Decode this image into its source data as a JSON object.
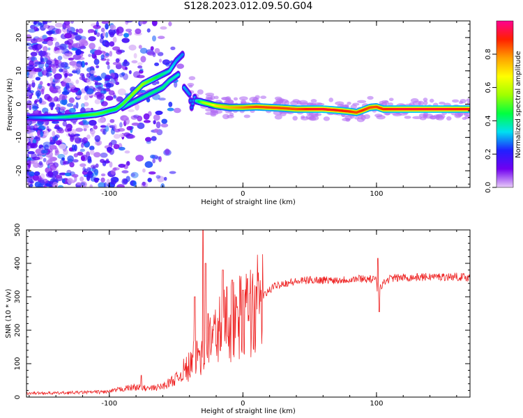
{
  "title": "S128.2023.012.09.50.G04",
  "chart_data": [
    {
      "type": "heatmap",
      "title": "",
      "xlabel": "Height of straight line (km)",
      "ylabel": "Frequency (Hz)",
      "xlim": [
        -162,
        170
      ],
      "ylim": [
        -25,
        25
      ],
      "x_ticks": [
        "-100",
        "0",
        "100"
      ],
      "y_ticks": [
        "20",
        "10",
        "0",
        "-10",
        "-20"
      ],
      "colorbar": {
        "label": "Normalized spectral amplitude",
        "range": [
          0,
          1
        ],
        "ticks": [
          "0.0",
          "0.2",
          "0.4",
          "0.6",
          "0.8"
        ],
        "colors": [
          "#e8ccf8",
          "#7000f0",
          "#2020ff",
          "#00e0f0",
          "#00ff40",
          "#a0ff00",
          "#ffff00",
          "#ffa000",
          "#ff2000",
          "#ff0090"
        ]
      },
      "ridge": [
        {
          "x": -162,
          "y": -4,
          "a": 0.25
        },
        {
          "x": -150,
          "y": -4,
          "a": 0.3
        },
        {
          "x": -140,
          "y": -4,
          "a": 0.35
        },
        {
          "x": -130,
          "y": -3.8,
          "a": 0.4
        },
        {
          "x": -125,
          "y": -3.6,
          "a": 0.42
        },
        {
          "x": -120,
          "y": -3.4,
          "a": 0.45
        },
        {
          "x": -115,
          "y": -3.2,
          "a": 0.47
        },
        {
          "x": -110,
          "y": -3,
          "a": 0.5
        },
        {
          "x": -105,
          "y": -2.6,
          "a": 0.48
        },
        {
          "x": -100,
          "y": -2,
          "a": 0.45
        },
        {
          "x": -95,
          "y": -1.5,
          "a": 0.45
        },
        {
          "x": -90,
          "y": 0,
          "a": 0.48
        },
        {
          "x": -85,
          "y": 2,
          "a": 0.52
        },
        {
          "x": -80,
          "y": 4,
          "a": 0.55
        },
        {
          "x": -75,
          "y": 6,
          "a": 0.55
        },
        {
          "x": -70,
          "y": 7,
          "a": 0.5
        },
        {
          "x": -65,
          "y": 8,
          "a": 0.45
        },
        {
          "x": -60,
          "y": 9,
          "a": 0.4
        },
        {
          "x": -55,
          "y": 10,
          "a": 0.35
        },
        {
          "x": -50,
          "y": 13,
          "a": 0.3
        },
        {
          "x": -45,
          "y": 15,
          "a": 0.28
        },
        {
          "x": -35,
          "y": 1,
          "a": 0.35
        },
        {
          "x": -30,
          "y": 0.5,
          "a": 0.55
        },
        {
          "x": -25,
          "y": 0,
          "a": 0.6
        },
        {
          "x": -20,
          "y": -0.5,
          "a": 0.7
        },
        {
          "x": -10,
          "y": -1,
          "a": 0.75
        },
        {
          "x": 0,
          "y": -1,
          "a": 0.8
        },
        {
          "x": 10,
          "y": -0.8,
          "a": 0.85
        },
        {
          "x": 20,
          "y": -1,
          "a": 0.85
        },
        {
          "x": 30,
          "y": -1.2,
          "a": 0.85
        },
        {
          "x": 40,
          "y": -1.5,
          "a": 0.85
        },
        {
          "x": 50,
          "y": -1.5,
          "a": 0.9
        },
        {
          "x": 60,
          "y": -1.5,
          "a": 0.92
        },
        {
          "x": 70,
          "y": -1.8,
          "a": 0.9
        },
        {
          "x": 80,
          "y": -2.2,
          "a": 0.88
        },
        {
          "x": 85,
          "y": -2.5,
          "a": 0.85
        },
        {
          "x": 90,
          "y": -1.8,
          "a": 0.88
        },
        {
          "x": 95,
          "y": -1,
          "a": 0.85
        },
        {
          "x": 100,
          "y": -0.8,
          "a": 0.85
        },
        {
          "x": 105,
          "y": -1.5,
          "a": 0.88
        },
        {
          "x": 110,
          "y": -1.5,
          "a": 0.9
        },
        {
          "x": 120,
          "y": -1.5,
          "a": 0.92
        },
        {
          "x": 130,
          "y": -1.5,
          "a": 0.92
        },
        {
          "x": 140,
          "y": -1.5,
          "a": 0.92
        },
        {
          "x": 150,
          "y": -1.5,
          "a": 0.92
        },
        {
          "x": 160,
          "y": -1.5,
          "a": 0.9
        },
        {
          "x": 170,
          "y": -1.5,
          "a": 0.9
        }
      ],
      "secondary_ridge": [
        {
          "x": -90,
          "y": -1,
          "a": 0.35
        },
        {
          "x": -80,
          "y": 1,
          "a": 0.38
        },
        {
          "x": -70,
          "y": 3,
          "a": 0.4
        },
        {
          "x": -60,
          "y": 5,
          "a": 0.4
        },
        {
          "x": -55,
          "y": 7,
          "a": 0.38
        },
        {
          "x": -48,
          "y": 9,
          "a": 0.35
        },
        {
          "x": -44,
          "y": 5,
          "a": 0.3
        },
        {
          "x": -40,
          "y": 3,
          "a": 0.28
        },
        {
          "x": -38,
          "y": -2,
          "a": 0.25
        },
        {
          "x": -42,
          "y": -5,
          "a": 0.22
        },
        {
          "x": -36,
          "y": 2,
          "a": 0.3
        }
      ]
    },
    {
      "type": "line",
      "title": "",
      "xlabel": "Height of straight line (km)",
      "ylabel": "SNR (10 * v/v)",
      "xlim": [
        -162,
        170
      ],
      "ylim": [
        0,
        500
      ],
      "x_ticks": [
        "-100",
        "0",
        "100"
      ],
      "y_ticks": [
        "0",
        "100",
        "200",
        "300",
        "400",
        "500"
      ],
      "color": "#ee2222",
      "envelope": [
        {
          "x": -162,
          "y": 12
        },
        {
          "x": -140,
          "y": 12
        },
        {
          "x": -120,
          "y": 14
        },
        {
          "x": -100,
          "y": 16
        },
        {
          "x": -90,
          "y": 25
        },
        {
          "x": -80,
          "y": 30
        },
        {
          "x": -70,
          "y": 25
        },
        {
          "x": -60,
          "y": 32
        },
        {
          "x": -50,
          "y": 55
        },
        {
          "x": -40,
          "y": 90
        },
        {
          "x": -35,
          "y": 120
        },
        {
          "x": -30,
          "y": 150
        },
        {
          "x": -25,
          "y": 165
        },
        {
          "x": -20,
          "y": 190
        },
        {
          "x": -15,
          "y": 215
        },
        {
          "x": -10,
          "y": 225
        },
        {
          "x": -5,
          "y": 235
        },
        {
          "x": 0,
          "y": 245
        },
        {
          "x": 5,
          "y": 255
        },
        {
          "x": 10,
          "y": 270
        },
        {
          "x": 15,
          "y": 300
        },
        {
          "x": 20,
          "y": 320
        },
        {
          "x": 25,
          "y": 335
        },
        {
          "x": 30,
          "y": 340
        },
        {
          "x": 40,
          "y": 345
        },
        {
          "x": 50,
          "y": 350
        },
        {
          "x": 60,
          "y": 350
        },
        {
          "x": 70,
          "y": 350
        },
        {
          "x": 80,
          "y": 352
        },
        {
          "x": 90,
          "y": 355
        },
        {
          "x": 100,
          "y": 350
        },
        {
          "x": 101,
          "y": 290
        },
        {
          "x": 102,
          "y": 330
        },
        {
          "x": 110,
          "y": 355
        },
        {
          "x": 120,
          "y": 358
        },
        {
          "x": 130,
          "y": 358
        },
        {
          "x": 140,
          "y": 360
        },
        {
          "x": 150,
          "y": 360
        },
        {
          "x": 160,
          "y": 360
        },
        {
          "x": 170,
          "y": 358
        }
      ],
      "spikes": [
        {
          "x": -76,
          "y": 65
        },
        {
          "x": -36,
          "y": 300
        },
        {
          "x": -30,
          "y": 500
        },
        {
          "x": -28,
          "y": 400
        },
        {
          "x": -26,
          "y": 250
        },
        {
          "x": -15,
          "y": 380
        },
        {
          "x": -12,
          "y": 330
        },
        {
          "x": -8,
          "y": 350
        },
        {
          "x": -5,
          "y": 300
        },
        {
          "x": 0,
          "y": 320
        },
        {
          "x": 5,
          "y": 310
        },
        {
          "x": 10,
          "y": 330
        },
        {
          "x": 101,
          "y": 415
        },
        {
          "x": 102,
          "y": 255
        }
      ]
    }
  ]
}
